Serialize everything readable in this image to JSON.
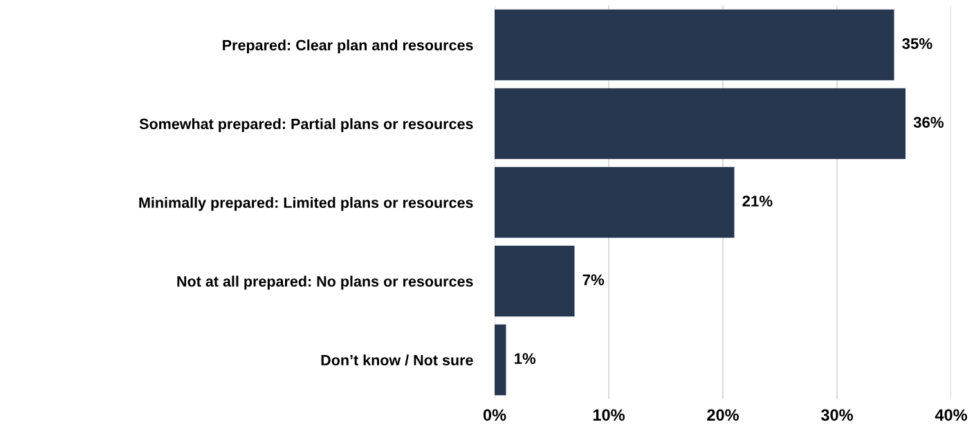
{
  "chart_data": {
    "type": "bar",
    "orientation": "horizontal",
    "categories": [
      "Prepared: Clear plan and resources",
      "Somewhat prepared: Partial plans or resources",
      "Minimally prepared: Limited plans or resources",
      "Not at all prepared: No plans or resources",
      "Don’t know / Not sure"
    ],
    "values": [
      35,
      36,
      21,
      7,
      1
    ],
    "value_labels": [
      "35%",
      "36%",
      "21%",
      "7%",
      "1%"
    ],
    "color": "#26374f",
    "xlim": [
      0,
      40
    ],
    "xticks": [
      {
        "value": 0,
        "label": "0%"
      },
      {
        "value": 10,
        "label": "10%"
      },
      {
        "value": 20,
        "label": "20%"
      },
      {
        "value": 30,
        "label": "30%"
      },
      {
        "value": 40,
        "label": "40%"
      }
    ],
    "grid": "x",
    "legend": false
  }
}
